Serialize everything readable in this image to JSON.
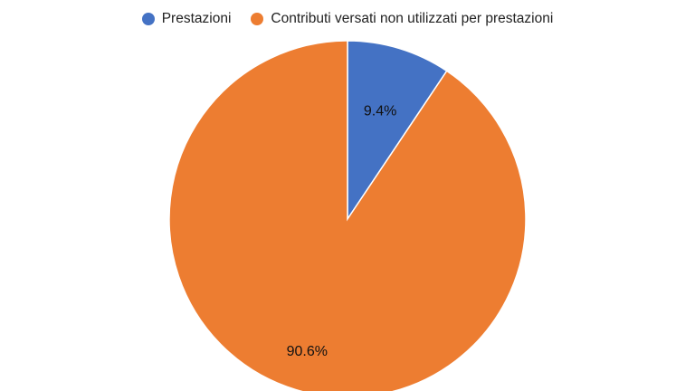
{
  "chart_data": {
    "type": "pie",
    "title": "",
    "categories": [
      "Prestazioni",
      "Contributi versati non utilizzati per prestazioni"
    ],
    "values": [
      9.4,
      90.6
    ],
    "value_labels": [
      "9.4%",
      "90.6%"
    ],
    "colors": [
      "#4472c4",
      "#ed7d31"
    ],
    "legend_position": "top-center",
    "start_angle": "12 o'clock, clockwise"
  }
}
